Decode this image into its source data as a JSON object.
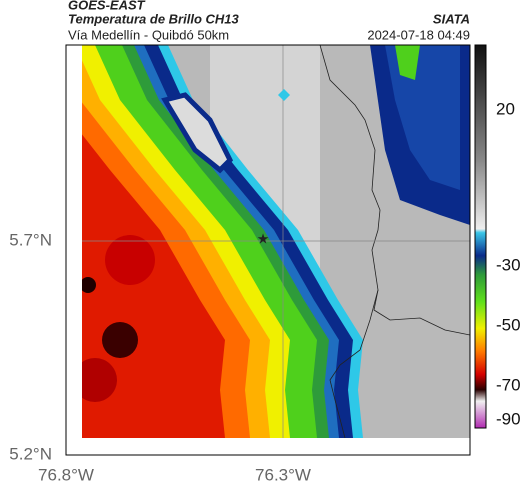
{
  "header": {
    "title": "GOES-EAST",
    "subtitle": "Temperatura de Brillo CH13",
    "source": "SIATA",
    "location": "Vía Medellín - Quibdó 50km",
    "timestamp": "2024-07-18 04:49"
  },
  "axes": {
    "lat_ticks": [
      "5.7°N",
      "5.2°N"
    ],
    "lon_ticks": [
      "76.8°W",
      "76.3°W"
    ]
  },
  "colorbar": {
    "ticks": [
      "20",
      "-30",
      "-50",
      "-70",
      "-90"
    ]
  }
}
